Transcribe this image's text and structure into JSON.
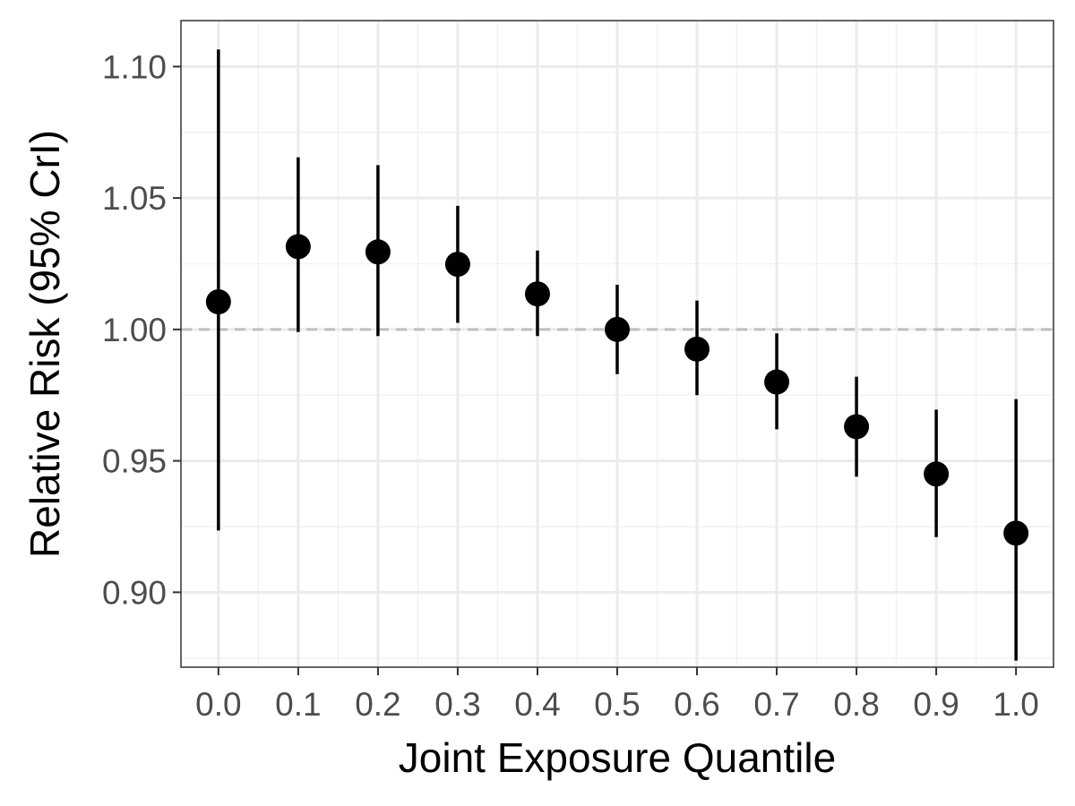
{
  "chart_data": {
    "type": "scatter",
    "title": "",
    "xlabel": "Joint Exposure Quantile",
    "ylabel": "Relative Risk (95% CrI)",
    "x": [
      0.0,
      0.1,
      0.2,
      0.3,
      0.4,
      0.5,
      0.6,
      0.7,
      0.8,
      0.9,
      1.0
    ],
    "x_tick_labels": [
      "0.0",
      "0.1",
      "0.2",
      "0.3",
      "0.4",
      "0.5",
      "0.6",
      "0.7",
      "0.8",
      "0.9",
      "1.0"
    ],
    "y_ticks": [
      0.9,
      0.95,
      1.0,
      1.05,
      1.1
    ],
    "y_tick_labels": [
      "0.90",
      "0.95",
      "1.00",
      "1.05",
      "1.10"
    ],
    "series": [
      {
        "estimate": [
          1.0105,
          1.0315,
          1.0295,
          1.0248,
          1.0135,
          1.0,
          0.9925,
          0.98,
          0.963,
          0.945,
          0.9225
        ],
        "lower": [
          0.9235,
          0.999,
          0.9975,
          1.0025,
          0.9975,
          0.983,
          0.975,
          0.962,
          0.944,
          0.921,
          0.874
        ],
        "upper": [
          1.1065,
          1.0655,
          1.0625,
          1.047,
          1.03,
          1.017,
          1.011,
          0.9985,
          0.982,
          0.9695,
          0.9735
        ]
      }
    ],
    "reference_line": {
      "y": 1.0,
      "style": "dashed",
      "color": "#bfbfbf"
    },
    "xlim": [
      -0.047,
      1.047
    ],
    "ylim": [
      0.8715,
      1.1175
    ],
    "grid": true,
    "colors": {
      "point": "#000000",
      "panel_border": "#333333",
      "grid_major": "#ebebeb",
      "grid_minor": "#f2f2f2"
    }
  }
}
